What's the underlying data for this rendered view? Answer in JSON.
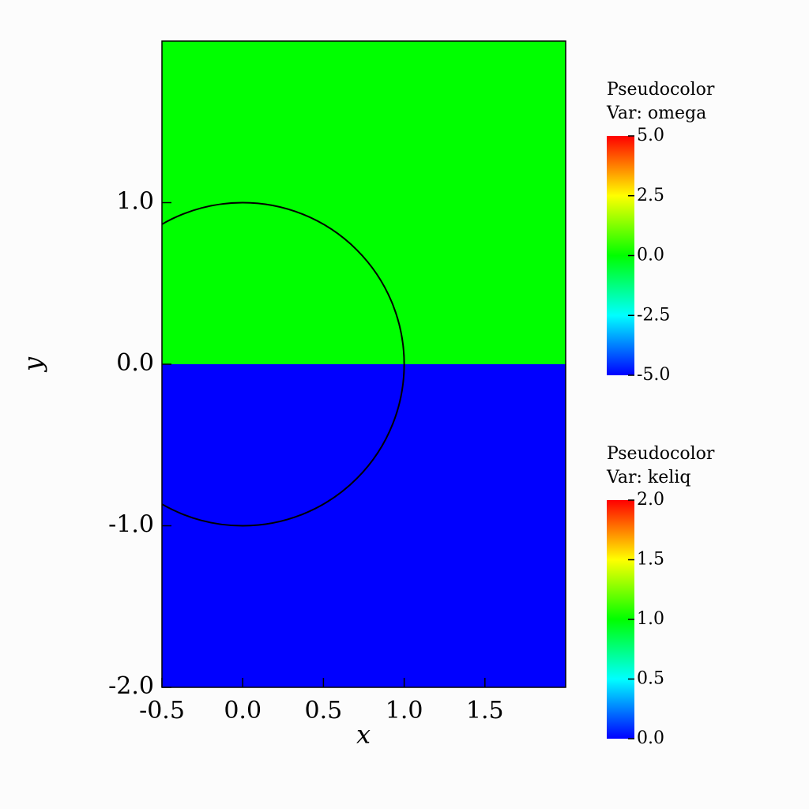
{
  "chart_data": {
    "type": "pseudocolor",
    "x_label": "x",
    "y_label": "y",
    "xlim": [
      -0.5,
      2.0
    ],
    "ylim": [
      -2.0,
      2.0
    ],
    "xticks": [
      -0.5,
      {
        "value": 0,
        "label": "0.0"
      },
      0.5,
      {
        "value": 1,
        "label": "1.0"
      },
      1.5
    ],
    "yticks": [
      {
        "value": -2,
        "label": "-2.0"
      },
      {
        "value": -1,
        "label": "-1.0"
      },
      {
        "value": 0,
        "label": "0.0"
      },
      {
        "value": 1,
        "label": "1.0"
      }
    ],
    "colormap": [
      "#0000ff",
      "#00ffff",
      "#00ff00",
      "#ffff00",
      "#ff0000"
    ],
    "regions": [
      {
        "y": [
          0,
          2
        ],
        "value": 0
      },
      {
        "y": [
          -2,
          0
        ],
        "value": -5
      }
    ],
    "contour": {
      "cx": 0,
      "cy": 0,
      "r": 1
    },
    "legends": [
      {
        "title": "Pseudocolor",
        "variable": "Var: omega",
        "lim": [
          -5,
          5
        ],
        "ticks": [
          {
            "value": -5,
            "label": "-5.0"
          },
          -2.5,
          {
            "value": 0,
            "label": "0.0"
          },
          2.5,
          {
            "value": 5,
            "label": "5.0"
          }
        ]
      },
      {
        "title": "Pseudocolor",
        "variable": "Var: keliq",
        "lim": [
          0,
          2
        ],
        "ticks": [
          {
            "value": 0,
            "label": "0.0"
          },
          0.5,
          {
            "value": 1,
            "label": "1.0"
          },
          1.5,
          {
            "value": 2,
            "label": "2.0"
          }
        ]
      }
    ]
  }
}
